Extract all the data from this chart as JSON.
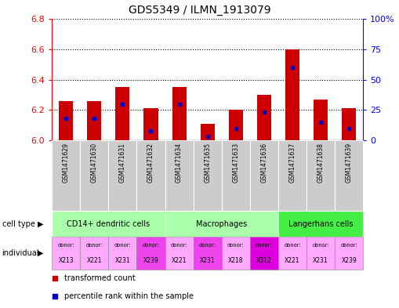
{
  "title": "GDS5349 / ILMN_1913079",
  "samples": [
    "GSM1471629",
    "GSM1471630",
    "GSM1471631",
    "GSM1471632",
    "GSM1471634",
    "GSM1471635",
    "GSM1471633",
    "GSM1471636",
    "GSM1471637",
    "GSM1471638",
    "GSM1471639"
  ],
  "transformed_count": [
    6.26,
    6.26,
    6.35,
    6.21,
    6.35,
    6.11,
    6.2,
    6.3,
    6.6,
    6.27,
    6.21
  ],
  "percentile_rank": [
    18,
    18,
    30,
    8,
    30,
    3,
    10,
    23,
    60,
    15,
    10
  ],
  "y_min": 6.0,
  "y_max": 6.8,
  "y_ticks": [
    6.0,
    6.2,
    6.4,
    6.6,
    6.8
  ],
  "y2_ticks": [
    0,
    25,
    50,
    75,
    100
  ],
  "bar_color_red": "#cc0000",
  "bar_color_blue": "#0000cc",
  "bar_width": 0.5,
  "bg_color_sample": "#cccccc",
  "cell_type_groups": [
    {
      "label": "CD14+ dendritic cells",
      "start": 0,
      "end": 3,
      "color": "#aaffaa"
    },
    {
      "label": "Macrophages",
      "start": 4,
      "end": 7,
      "color": "#aaffaa"
    },
    {
      "label": "Langerhans cells",
      "start": 8,
      "end": 10,
      "color": "#44ee44"
    }
  ],
  "donors": [
    "X213",
    "X221",
    "X231",
    "X239",
    "X221",
    "X231",
    "X218",
    "X312",
    "X221",
    "X231",
    "X239"
  ],
  "ind_colors": [
    "#ffaaff",
    "#ffaaff",
    "#ffaaff",
    "#ee44ee",
    "#ffaaff",
    "#ee44ee",
    "#ffaaff",
    "#dd00dd",
    "#ffaaff",
    "#ffaaff",
    "#ffaaff"
  ],
  "label_cell_type": "cell type",
  "label_individual": "individual",
  "legend_red": "transformed count",
  "legend_blue": "percentile rank within the sample"
}
